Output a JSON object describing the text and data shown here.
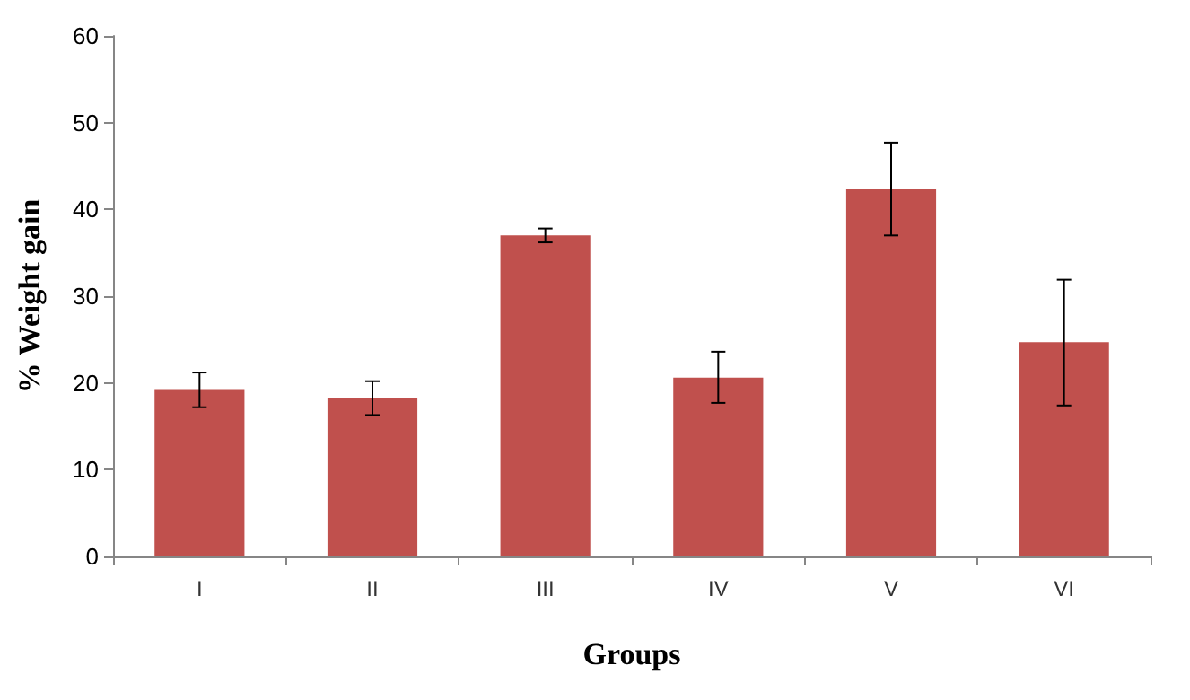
{
  "chart_data": {
    "type": "bar",
    "xlabel": "Groups",
    "ylabel": "% Weight gain",
    "categories": [
      "I",
      "II",
      "III",
      "IV",
      "V",
      "VI"
    ],
    "values": [
      19.2,
      18.3,
      37.0,
      20.6,
      42.3,
      24.7
    ],
    "errors": [
      [
        17.2,
        21.2
      ],
      [
        16.3,
        20.2
      ],
      [
        36.2,
        37.8
      ],
      [
        17.7,
        23.6
      ],
      [
        37.0,
        47.7
      ],
      [
        17.4,
        31.9
      ]
    ],
    "color": "#c0504d",
    "ylim": [
      0,
      60
    ],
    "yticks": [
      0,
      10,
      20,
      30,
      40,
      50,
      60
    ],
    "grid": false
  }
}
